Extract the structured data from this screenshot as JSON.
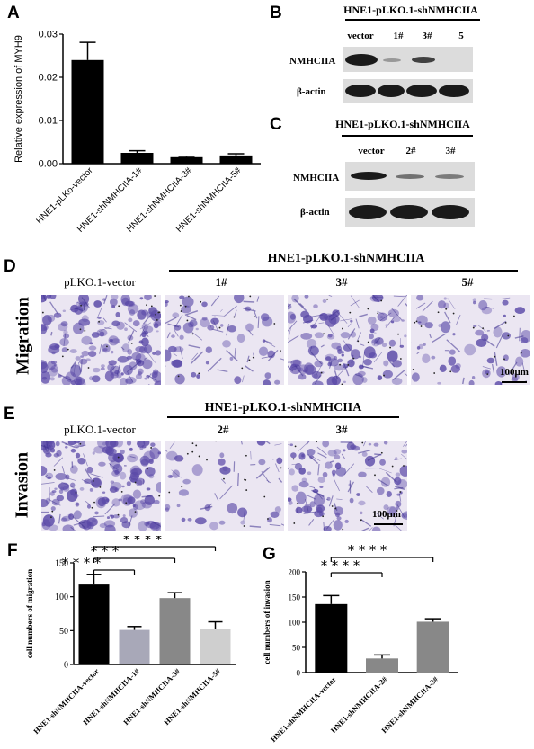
{
  "panels": {
    "A": "A",
    "B": "B",
    "C": "C",
    "D": "D",
    "E": "E",
    "F": "F",
    "G": "G"
  },
  "blot_b": {
    "title": "HNE1-pLKO.1-shNMHCIIA",
    "lanes": [
      "vector",
      "1#",
      "3#",
      "5"
    ],
    "rows": [
      "NMHCIIA",
      "β-actin"
    ]
  },
  "blot_c": {
    "title": "HNE1-pLKO.1-shNMHCIIA",
    "lanes": [
      "vector",
      "2#",
      "3#"
    ],
    "rows": [
      "NMHCIIA",
      "β-actin"
    ]
  },
  "migration": {
    "side_label": "Migration",
    "group_title": "HNE1-pLKO.1-shNMHCIIA",
    "labels": [
      "pLKO.1-vector",
      "1#",
      "3#",
      "5#"
    ],
    "scale": "100μm"
  },
  "invasion": {
    "side_label": "Invasion",
    "group_title": "HNE1-pLKO.1-shNMHCIIA",
    "labels": [
      "pLKO.1-vector",
      "2#",
      "3#"
    ],
    "scale": "100μm"
  },
  "colors": {
    "stain": "#5b4aa8",
    "bar_black": "#000000",
    "bar_light": "#a8a8b8",
    "bar_mid": "#888888",
    "bar_pale": "#cfcfcf"
  },
  "chart_data": [
    {
      "id": "A",
      "type": "bar",
      "categories": [
        "HNE1-pLKo-vector",
        "HNE1-shNMHCIIA-1#",
        "HNE1-shNMHCIIA-3#",
        "HNE1-shNMHCIIA-5#"
      ],
      "values": [
        0.024,
        0.0025,
        0.0015,
        0.0019
      ],
      "errors": [
        0.0041,
        0.0005,
        0.0002,
        0.0004
      ],
      "ylabel": "Relative expression of MYH9",
      "ylim": [
        0,
        0.03
      ],
      "yticks": [
        "0.00",
        "0.01",
        "0.02",
        "0.03"
      ],
      "bar_colors": [
        "#000000",
        "#000000",
        "#000000",
        "#000000"
      ]
    },
    {
      "id": "F",
      "type": "bar",
      "categories": [
        "HNE1-shNMHCIIA-vector",
        "HNE1-shNMHCIIA-1#",
        "HNE1-shNMHCIIA-3#",
        "HNE1-shNMHCIIA-5#"
      ],
      "values": [
        118,
        51,
        98,
        52
      ],
      "errors": [
        15,
        5,
        8,
        11
      ],
      "ylabel": "cell numbers of migration",
      "ylim": [
        0,
        150
      ],
      "yticks": [
        "0",
        "50",
        "100",
        "150"
      ],
      "bar_colors": [
        "#000000",
        "#a8a8b8",
        "#888888",
        "#cfcfcf"
      ],
      "significance": [
        "****",
        "***",
        "****"
      ]
    },
    {
      "id": "G",
      "type": "bar",
      "categories": [
        "HNE1-shNMHCIIA-vector",
        "HNE1-shNMHCIIA-2#",
        "HNE1-shNMHCIIA-3#"
      ],
      "values": [
        136,
        28,
        101
      ],
      "errors": [
        17,
        7,
        6
      ],
      "ylabel": "cell numbers of invasion",
      "ylim": [
        0,
        200
      ],
      "yticks": [
        "0",
        "50",
        "100",
        "150",
        "200"
      ],
      "bar_colors": [
        "#000000",
        "#888888",
        "#888888"
      ],
      "significance": [
        "****",
        "****"
      ]
    }
  ]
}
